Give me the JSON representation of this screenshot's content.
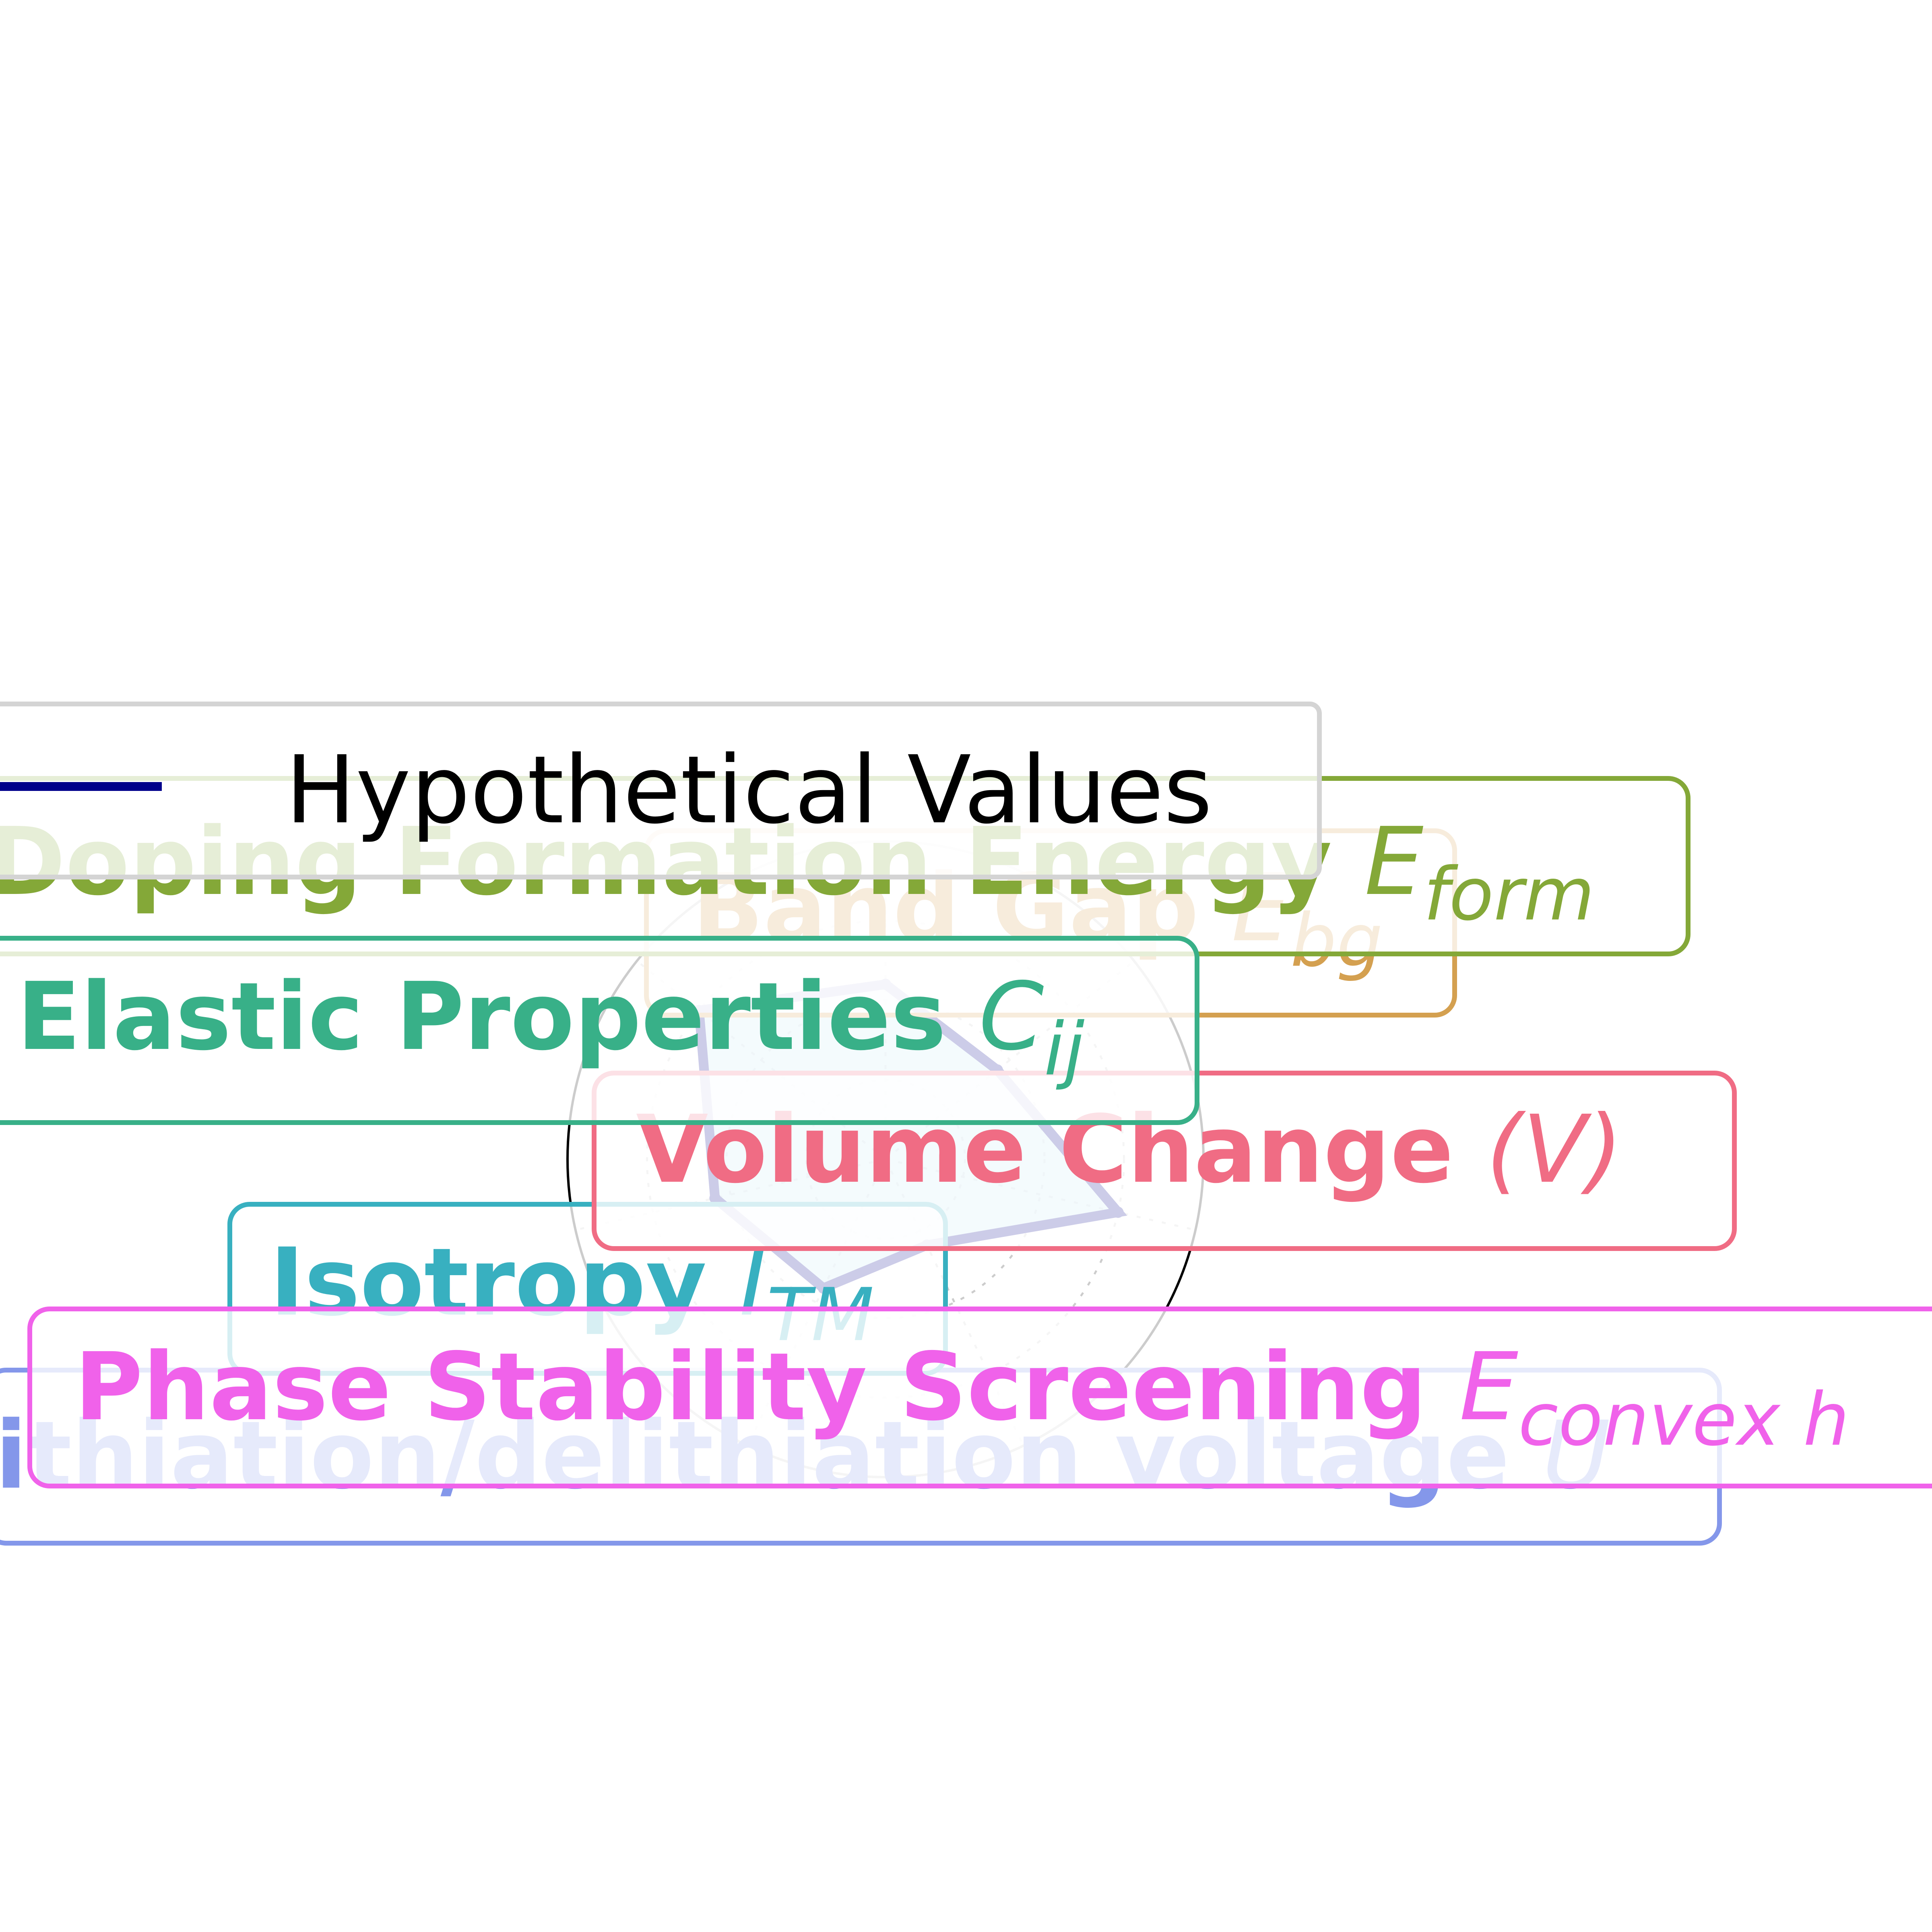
{
  "chart_data": {
    "type": "radar",
    "title": "",
    "axes": [
      {
        "name": "Lithiation/delithiation voltage",
        "symbol": "U",
        "subscript": "",
        "color": "#8497ea"
      },
      {
        "name": "Phase Stability Screening",
        "symbol": "E",
        "subscript": "convex h",
        "color": "#f062ea"
      },
      {
        "name": "Volume Change",
        "symbol": "(V)",
        "subscript": "",
        "color": "#f06c84"
      },
      {
        "name": "Band Gap",
        "symbol": "E",
        "subscript": "bg",
        "color": "#d4a050"
      },
      {
        "name": "Doping Formation Energy",
        "symbol": "E",
        "subscript": "form",
        "color": "#84a838"
      },
      {
        "name": "Elastic Properties",
        "symbol": "C",
        "subscript": "ij",
        "color": "#38b088"
      },
      {
        "name": "Isotropy",
        "symbol": "I",
        "subscript": "TM",
        "color": "#38b0c0"
      }
    ],
    "series": [
      {
        "name": "Hypothetical Values",
        "color": "#00008b",
        "fill": "#87ceeb",
        "values": [
          0.55,
          0.75,
          0.55,
          0.45,
          0.3,
          0.75,
          0.45
        ]
      }
    ],
    "rmax": 1.0,
    "legend_position": "upper-left"
  }
}
